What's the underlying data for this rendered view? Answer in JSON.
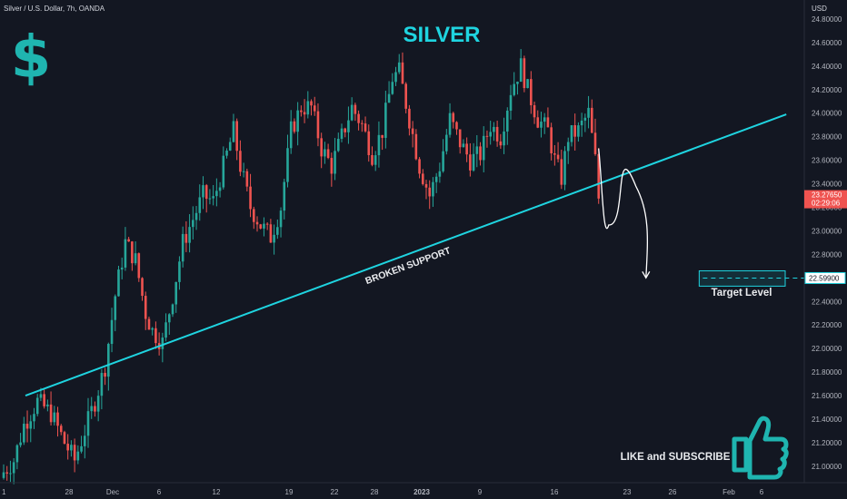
{
  "header": {
    "symbol_line": "Silver / U.S. Dollar, 7h, OANDA",
    "currency": "USD"
  },
  "colors": {
    "background": "#131722",
    "up": "#26a69a",
    "down": "#ef5350",
    "trendline": "#1fd4e0",
    "accent": "#1fd4e0",
    "text": "#d1d4dc",
    "axis_text": "#b2b5be"
  },
  "chart_data": {
    "type": "candlestick",
    "title": "SILVER",
    "ylabel": "USD",
    "ylim": [
      20.86,
      24.9
    ],
    "y_ticks": [
      21.0,
      21.2,
      21.4,
      21.6,
      21.8,
      22.0,
      22.2,
      22.4,
      22.6,
      22.8,
      23.0,
      23.2,
      23.4,
      23.6,
      23.8,
      24.0,
      24.2,
      24.4,
      24.6,
      24.8
    ],
    "y_tick_labels": [
      "21.00000",
      "21.20000",
      "21.40000",
      "21.60000",
      "21.80000",
      "22.00000",
      "22.20000",
      "22.40000",
      "22.60000",
      "22.80000",
      "23.00000",
      "23.20000",
      "23.40000",
      "23.60000",
      "23.80000",
      "24.00000",
      "24.20000",
      "24.40000",
      "24.60000",
      "24.80000"
    ],
    "x_tick_labels": [
      "1",
      "28",
      "Dec",
      "6",
      "12",
      "19",
      "22",
      "28",
      "2023",
      "9",
      "16",
      "23",
      "26",
      "Feb",
      "6"
    ],
    "x_tick_bold": "2023",
    "grid": false,
    "candle_count": 180,
    "anchor_closes": [
      [
        0,
        20.95
      ],
      [
        3,
        21.05
      ],
      [
        6,
        21.35
      ],
      [
        10,
        21.55
      ],
      [
        14,
        21.45
      ],
      [
        18,
        21.2
      ],
      [
        21,
        21.05
      ],
      [
        24,
        21.3
      ],
      [
        27,
        21.55
      ],
      [
        30,
        21.85
      ],
      [
        33,
        22.45
      ],
      [
        36,
        22.9
      ],
      [
        39,
        22.75
      ],
      [
        42,
        22.3
      ],
      [
        44,
        22.15
      ],
      [
        47,
        22.05
      ],
      [
        50,
        22.45
      ],
      [
        53,
        22.9
      ],
      [
        56,
        23.1
      ],
      [
        59,
        23.3
      ],
      [
        62,
        23.25
      ],
      [
        65,
        23.55
      ],
      [
        68,
        23.85
      ],
      [
        70,
        23.55
      ],
      [
        73,
        23.2
      ],
      [
        76,
        23.05
      ],
      [
        79,
        22.95
      ],
      [
        82,
        23.2
      ],
      [
        85,
        23.85
      ],
      [
        88,
        24.05
      ],
      [
        91,
        24.05
      ],
      [
        94,
        23.7
      ],
      [
        97,
        23.55
      ],
      [
        100,
        23.8
      ],
      [
        103,
        24.05
      ],
      [
        106,
        23.9
      ],
      [
        109,
        23.65
      ],
      [
        112,
        23.85
      ],
      [
        115,
        24.3
      ],
      [
        117,
        24.35
      ],
      [
        120,
        23.95
      ],
      [
        123,
        23.55
      ],
      [
        126,
        23.3
      ],
      [
        129,
        23.55
      ],
      [
        132,
        23.95
      ],
      [
        135,
        23.75
      ],
      [
        138,
        23.6
      ],
      [
        141,
        23.65
      ],
      [
        144,
        23.9
      ],
      [
        147,
        23.8
      ],
      [
        150,
        24.2
      ],
      [
        153,
        24.4
      ],
      [
        155,
        24.2
      ],
      [
        158,
        23.95
      ],
      [
        161,
        23.85
      ],
      [
        163,
        23.6
      ],
      [
        165,
        23.45
      ],
      [
        167,
        23.8
      ],
      [
        170,
        23.85
      ],
      [
        173,
        24.0
      ],
      [
        175,
        23.6
      ],
      [
        176,
        23.28
      ]
    ],
    "current_price": 23.2765,
    "current_price_label": "23.27650",
    "countdown_label": "02:29:06",
    "target_price": 22.599,
    "target_price_label": "22.59900",
    "trendline": {
      "from": {
        "candle": 0,
        "price": 21.6
      },
      "to": {
        "candle": 210,
        "price": 23.99
      }
    },
    "projection_path": [
      [
        176,
        23.7
      ],
      [
        179,
        23.05
      ],
      [
        187,
        23.38
      ],
      [
        190,
        22.6
      ]
    ],
    "target_box": {
      "from_candle": 188,
      "to_candle": 212,
      "price_low": 22.53,
      "price_high": 22.66
    },
    "annotations": {
      "broken_support": "BROKEN SUPPORT",
      "target_level": "Target Level",
      "like_subscribe": "LIKE and SUBSCRIBE"
    }
  },
  "icons": {
    "dollar": "dollar-sign-icon",
    "thumbs_up": "thumbs-up-icon"
  }
}
